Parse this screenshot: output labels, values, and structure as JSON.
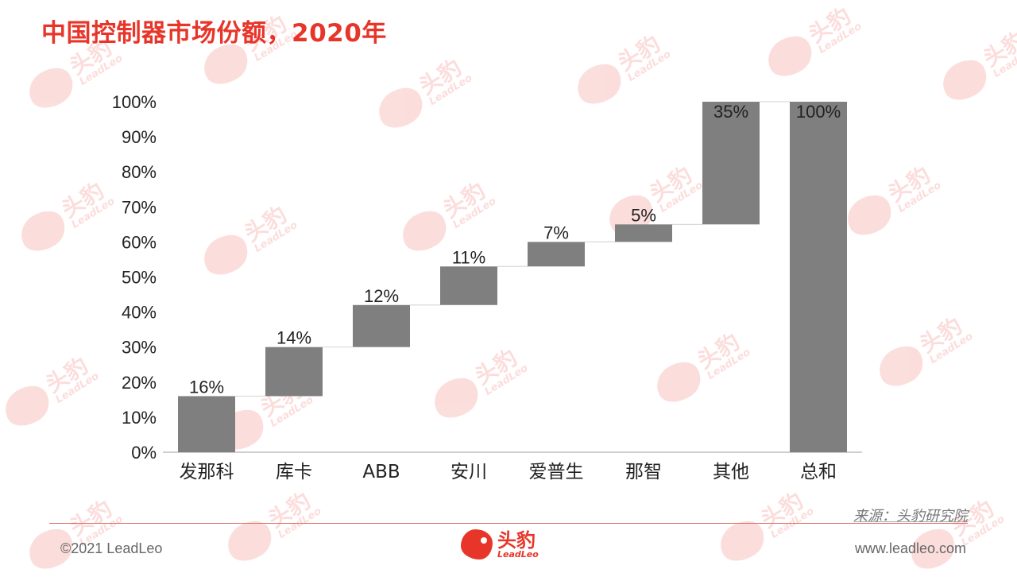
{
  "title": "中国控制器市场份额，2020年",
  "watermark": {
    "cn": "头豹",
    "en": "LeadLeo"
  },
  "colors": {
    "accent": "#e8352a",
    "bar": "#7f7f7f",
    "connector": "#d9d9d9"
  },
  "chart_data": {
    "type": "bar",
    "subtype": "waterfall",
    "categories": [
      "发那科",
      "库卡",
      "ABB",
      "安川",
      "爱普生",
      "那智",
      "其他",
      "总和"
    ],
    "bars": [
      {
        "start": 0,
        "end": 16
      },
      {
        "start": 16,
        "end": 30
      },
      {
        "start": 30,
        "end": 42
      },
      {
        "start": 42,
        "end": 53
      },
      {
        "start": 53,
        "end": 60
      },
      {
        "start": 60,
        "end": 65
      },
      {
        "start": 65,
        "end": 100
      },
      {
        "start": 0,
        "end": 100
      }
    ],
    "data_labels": [
      "16%",
      "14%",
      "12%",
      "11%",
      "7%",
      "5%",
      "35%",
      "100%"
    ],
    "ylim": [
      0,
      100
    ],
    "yticks": [
      "0%",
      "10%",
      "20%",
      "30%",
      "40%",
      "50%",
      "60%",
      "70%",
      "80%",
      "90%",
      "100%"
    ],
    "xlabel": "",
    "ylabel": "",
    "grid": false,
    "legend": "none"
  },
  "footer": {
    "source": "来源：头豹研究院",
    "copyright": "©2021 LeadLeo",
    "website": "www.leadleo.com",
    "logo_cn": "头豹",
    "logo_en": "LeadLeo"
  }
}
